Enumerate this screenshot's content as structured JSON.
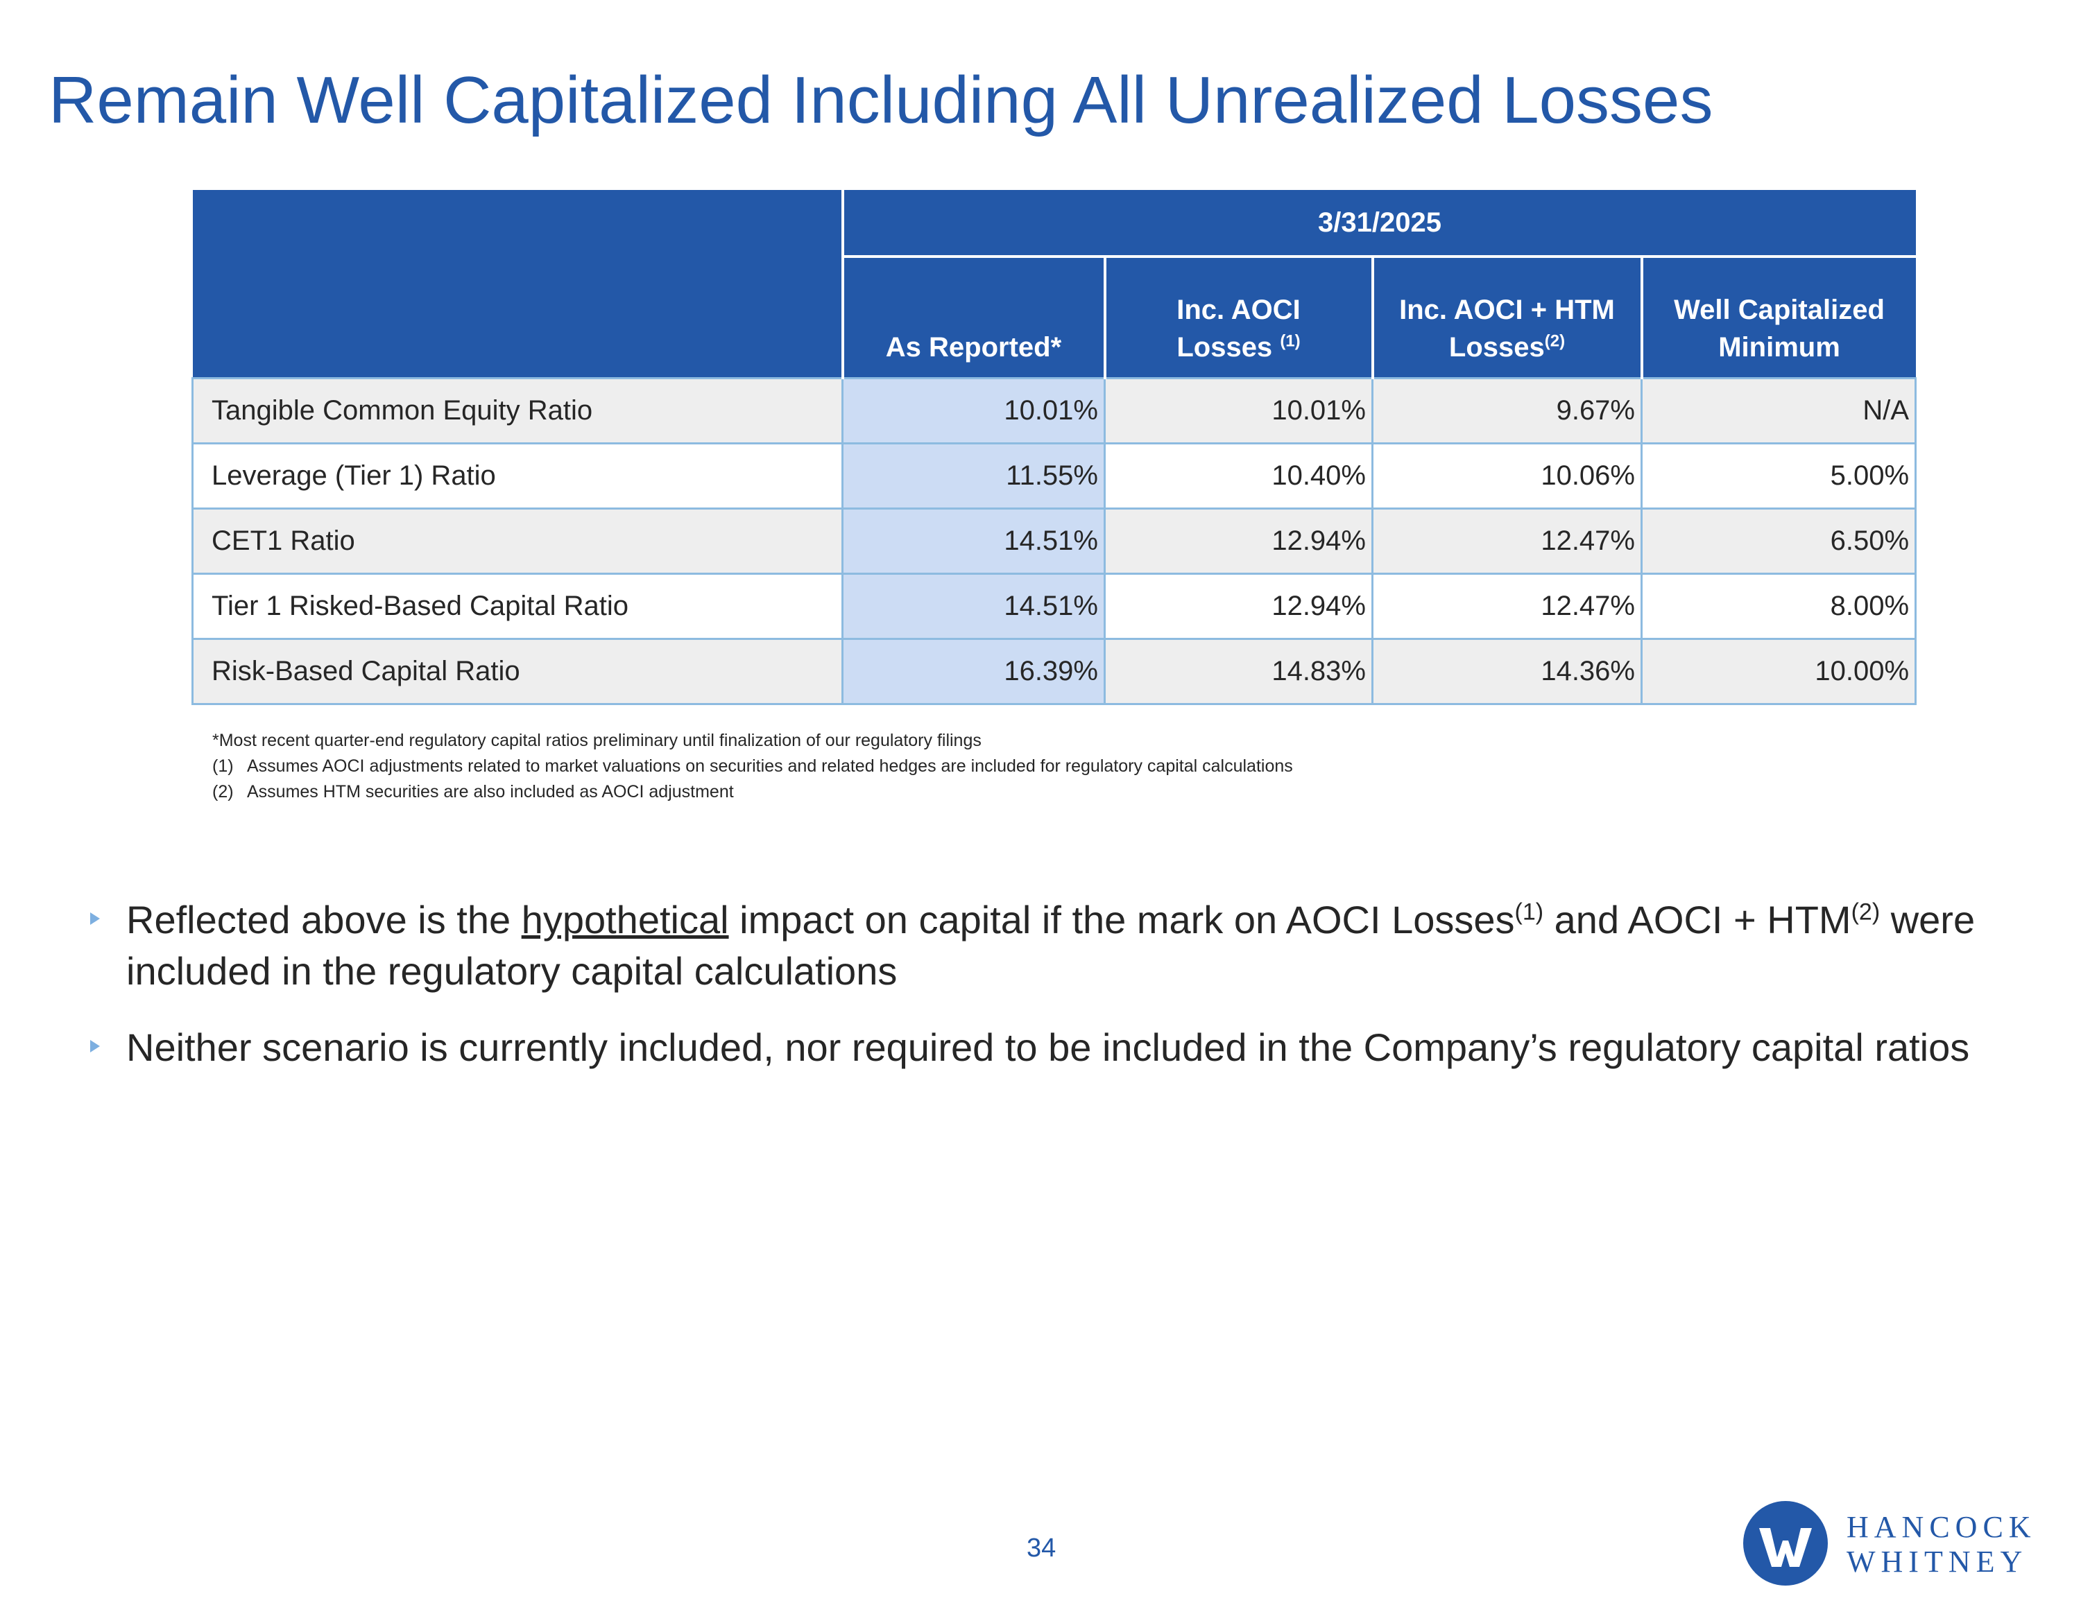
{
  "title": "Remain Well Capitalized Including All Unrealized Losses",
  "table": {
    "date_header": "3/31/2025",
    "columns": [
      {
        "line1": "As Reported*",
        "line2": "",
        "sup": ""
      },
      {
        "line1": "Inc. AOCI",
        "line2": "Losses",
        "sup": "(1)"
      },
      {
        "line1": "Inc. AOCI + HTM",
        "line2": "Losses",
        "sup": "(2)"
      },
      {
        "line1": "Well Capitalized",
        "line2": "Minimum",
        "sup": ""
      }
    ],
    "rows": [
      {
        "label": "Tangible Common Equity Ratio",
        "values": [
          "10.01%",
          "10.01%",
          "9.67%",
          "N/A"
        ]
      },
      {
        "label": "Leverage (Tier 1) Ratio",
        "values": [
          "11.55%",
          "10.40%",
          "10.06%",
          "5.00%"
        ]
      },
      {
        "label": "CET1 Ratio",
        "values": [
          "14.51%",
          "12.94%",
          "12.47%",
          "6.50%"
        ]
      },
      {
        "label": "Tier 1 Risked-Based Capital Ratio",
        "values": [
          "14.51%",
          "12.94%",
          "12.47%",
          "8.00%"
        ]
      },
      {
        "label": "Risk-Based Capital Ratio",
        "values": [
          "16.39%",
          "14.83%",
          "14.36%",
          "10.00%"
        ]
      }
    ]
  },
  "footnotes": {
    "star": "*Most recent quarter-end regulatory capital ratios preliminary until finalization of our regulatory filings",
    "notes": [
      {
        "num": "(1)",
        "text": "Assumes AOCI adjustments related to market valuations on securities and related hedges are included for regulatory capital calculations"
      },
      {
        "num": "(2)",
        "text": "Assumes HTM securities are also included as AOCI adjustment"
      }
    ]
  },
  "bullets": {
    "b1": {
      "part1": "Reflected above is the ",
      "underlined": "hypothetical",
      "part2": " impact on capital if the mark on AOCI Losses",
      "sup1": "(1)",
      "part3": " and AOCI + HTM",
      "sup2": "(2)",
      "part4": " were included in the regulatory capital calculations"
    },
    "b2": "Neither scenario is currently included, nor required to be included in the Company’s regulatory capital ratios"
  },
  "page_number": "34",
  "logo": {
    "line1": "HANCOCK",
    "line2": "WHITNEY",
    "brand_color": "#2358A8"
  },
  "colors": {
    "header_blue": "#2358A8",
    "reported_column": "#CCDCF4",
    "shaded_row": "#EEEEEE",
    "border": "#8DBBE0",
    "bullet_marker": "#7DAFE0"
  }
}
